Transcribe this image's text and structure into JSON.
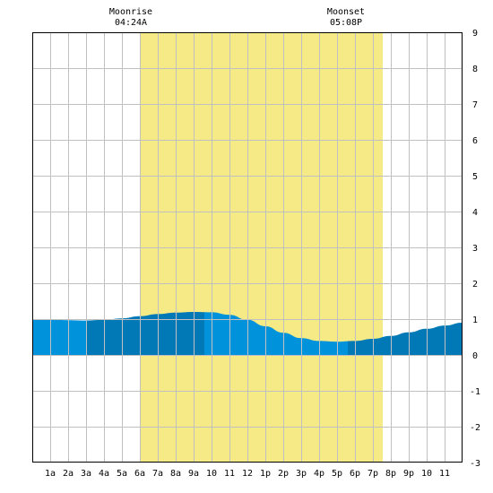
{
  "chart_data": {
    "type": "area",
    "title": "",
    "xlabel": "",
    "ylabel": "",
    "xlim": [
      0,
      24
    ],
    "ylim": [
      -3,
      9
    ],
    "grid": true,
    "x_tick_labels": [
      "1a",
      "2a",
      "3a",
      "4a",
      "5a",
      "6a",
      "7a",
      "8a",
      "9a",
      "10",
      "11",
      "12",
      "1p",
      "2p",
      "3p",
      "4p",
      "5p",
      "6p",
      "7p",
      "8p",
      "9p",
      "10",
      "11"
    ],
    "y_tick_labels": [
      "9",
      "8",
      "7",
      "6",
      "5",
      "4",
      "3",
      "2",
      "1",
      "0",
      "-1",
      "-2",
      "-3"
    ],
    "moon_band": {
      "start_hour": 6.0,
      "end_hour": 19.55
    },
    "annotations": [
      {
        "name": "moonrise",
        "label": "Moonrise",
        "time": "04:24A",
        "hour": 5.5
      },
      {
        "name": "moonset",
        "label": "Moonset",
        "time": "05:08P",
        "hour": 17.5
      }
    ],
    "series": [
      {
        "x": [
          0,
          1,
          2,
          3,
          4,
          5,
          6,
          7,
          8,
          9,
          10,
          11,
          12,
          13,
          14,
          15,
          16,
          17,
          18,
          19,
          20,
          21,
          22,
          23,
          24
        ],
        "values": [
          1.0,
          1.0,
          0.97,
          0.96,
          0.98,
          1.02,
          1.08,
          1.14,
          1.18,
          1.2,
          1.19,
          1.12,
          0.98,
          0.8,
          0.62,
          0.47,
          0.39,
          0.37,
          0.39,
          0.45,
          0.53,
          0.63,
          0.73,
          0.82,
          0.9
        ]
      }
    ],
    "shading_bands": [
      {
        "start_hour": 0,
        "end_hour": 3
      },
      {
        "start_hour": 3,
        "end_hour": 9.6
      },
      {
        "start_hour": 9.6,
        "end_hour": 17.6
      },
      {
        "start_hour": 17.6,
        "end_hour": 24
      }
    ],
    "colors": {
      "moon_band": "#f5ea85",
      "water_light": "#0093db",
      "water_dark": "#0079b6",
      "grid": "#c0c0c0",
      "frame": "#000000",
      "background": "#ffffff"
    }
  }
}
